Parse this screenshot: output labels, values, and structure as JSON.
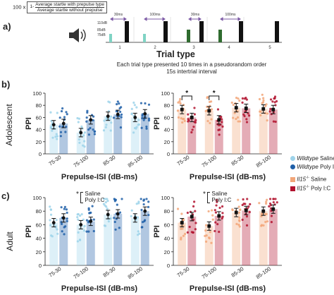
{
  "panel_a": {
    "label": "a)",
    "formula_prefix": "100 x",
    "formula_one": "1-",
    "formula_numerator": "Average startle with prepulse type",
    "formula_denominator": "Average startle without prepulse",
    "speaker_icon": "speaker-icon",
    "db_labels": [
      "110dB",
      "85dB",
      "75dB"
    ],
    "timing_labels": [
      "30ms",
      "100ms",
      "30ms",
      "100ms"
    ],
    "trial_numbers": [
      "1",
      "2",
      "3",
      "4",
      "5"
    ],
    "axis_title": "Trial type",
    "caption_line1": "Each trial type presented 10 times in a pseudorandom order",
    "caption_line2": "15s intertrial interval",
    "colors": {
      "light_teal": "#7fd3c4",
      "dark_green": "#2f6b2f",
      "black": "#111111",
      "purple": "#7d5ba6"
    }
  },
  "panel_b": {
    "label": "b)",
    "row_label": "Adolescent"
  },
  "panel_c": {
    "label": "c)",
    "row_label": "Adult"
  },
  "sig_legend": {
    "star": "*",
    "line1": "Saline",
    "line2": "Poly I:C"
  },
  "legend": {
    "items": [
      {
        "italic": "Wildtype",
        "text": " Saline",
        "color": "#9dd3ea"
      },
      {
        "italic": "Wildtype",
        "text": " Poly I:C",
        "color": "#1f5fa8"
      },
      {
        "italic": "Il15",
        "sup": "-/-",
        "text": " Saline",
        "color": "#f2a679"
      },
      {
        "italic": "Il15",
        "sup": "-/-",
        "text": " Poly I:C",
        "color": "#b1122e"
      }
    ]
  },
  "chart_data": [
    {
      "type": "bar",
      "panel": "b-left",
      "categories": [
        "75-30",
        "75-100",
        "85-30",
        "85-100"
      ],
      "xlabel": "Prepulse-ISI (dB-ms)",
      "ylabel": "PPI",
      "ylim": [
        0,
        100
      ],
      "yticks": [
        "0",
        "20",
        "40",
        "60",
        "80",
        "100"
      ],
      "series": [
        {
          "name": "Wildtype Saline",
          "color": "#9dd3ea",
          "values": [
            48,
            35,
            62,
            60
          ]
        },
        {
          "name": "Wildtype Poly I:C",
          "color": "#1f5fa8",
          "values": [
            50,
            56,
            65,
            66
          ]
        }
      ]
    },
    {
      "type": "bar",
      "panel": "b-right",
      "categories": [
        "75-30",
        "75-100",
        "85-30",
        "85-100"
      ],
      "xlabel": "Prepulse-ISI (dB-ms)",
      "ylabel": "PPI",
      "ylim": [
        0,
        100
      ],
      "yticks": [
        "0",
        "20",
        "40",
        "60",
        "80",
        "100"
      ],
      "significance": [
        {
          "category": "75-30",
          "text": "*"
        },
        {
          "category": "75-100",
          "text": "*"
        }
      ],
      "series": [
        {
          "name": "Il15-/- Saline",
          "color": "#f2a679",
          "values": [
            73,
            71,
            76,
            74
          ]
        },
        {
          "name": "Il15-/- Poly I:C",
          "color": "#b1122e",
          "values": [
            60,
            56,
            75,
            73
          ]
        }
      ]
    },
    {
      "type": "bar",
      "panel": "c-left",
      "categories": [
        "75-30",
        "75-100",
        "85-30",
        "85-100"
      ],
      "xlabel": "Prepulse-ISI (dB-ms)",
      "ylabel": "PPI",
      "ylim": [
        0,
        100
      ],
      "yticks": [
        "0",
        "20",
        "40",
        "60",
        "80",
        "100"
      ],
      "series": [
        {
          "name": "Wildtype Saline",
          "color": "#9dd3ea",
          "values": [
            63,
            60,
            75,
            70
          ]
        },
        {
          "name": "Wildtype Poly I:C",
          "color": "#1f5fa8",
          "values": [
            70,
            65,
            76,
            80
          ]
        }
      ]
    },
    {
      "type": "bar",
      "panel": "c-right",
      "categories": [
        "75-30",
        "75-100",
        "85-30",
        "85-100"
      ],
      "xlabel": "Prepulse-ISI (dB-ms)",
      "ylabel": "PPI",
      "ylim": [
        0,
        100
      ],
      "yticks": [
        "0",
        "20",
        "40",
        "60",
        "80",
        "100"
      ],
      "series": [
        {
          "name": "Il15-/- Saline",
          "color": "#f2a679",
          "values": [
            63,
            58,
            78,
            80
          ]
        },
        {
          "name": "Il15-/- Poly I:C",
          "color": "#b1122e",
          "values": [
            72,
            73,
            81,
            83
          ]
        }
      ]
    }
  ]
}
